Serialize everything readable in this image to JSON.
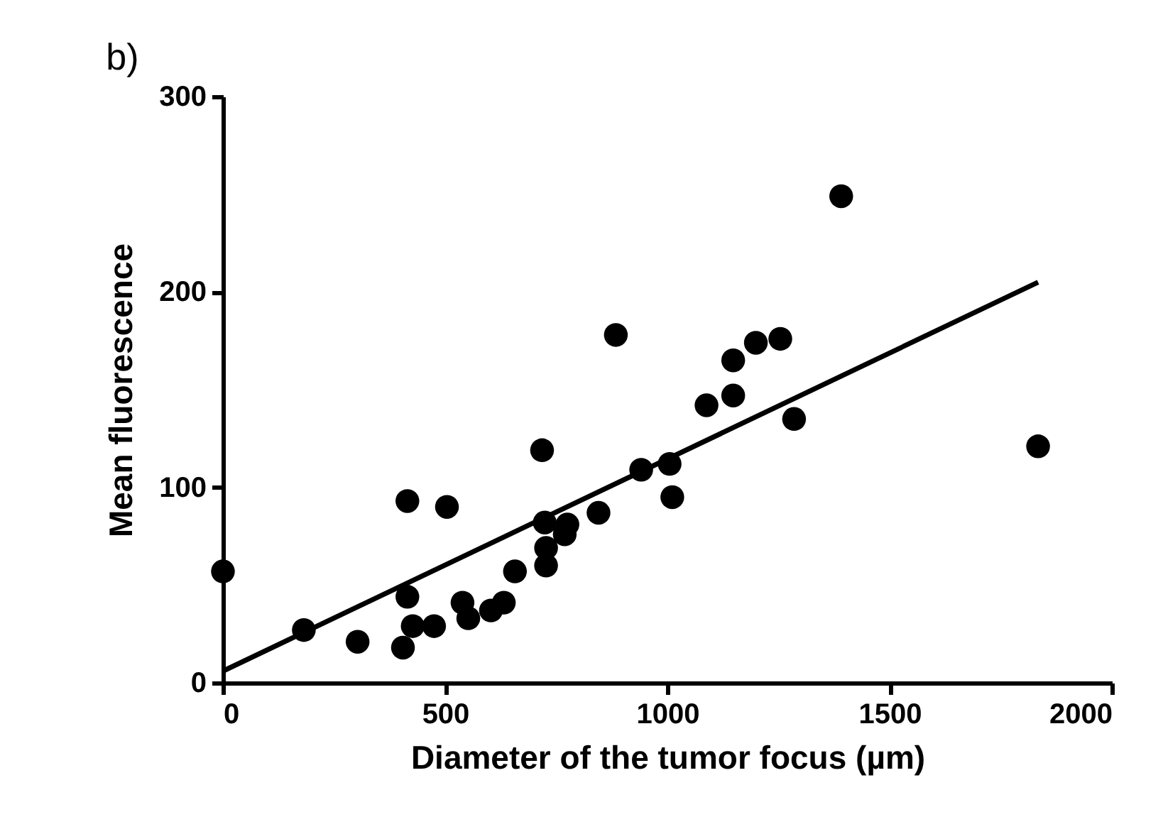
{
  "chart_data": {
    "type": "scatter",
    "xlabel": "Diameter of the tumor focus (µm)",
    "ylabel": "Mean fluorescence",
    "annotations": [
      "b)"
    ],
    "xlim": [
      0,
      2000
    ],
    "xticks": [
      0,
      500,
      1000,
      1500,
      2000
    ],
    "ylim": [
      0,
      300
    ],
    "yticks": [
      0,
      100,
      200,
      300
    ],
    "grid": false,
    "marker": "circle",
    "series": [
      {
        "color": "#000000",
        "x": [
          0,
          182,
          303,
          405,
          415,
          415,
          427,
          475,
          504,
          539,
          552,
          603,
          632,
          657,
          718,
          724,
          727,
          727,
          775,
          769,
          845,
          884,
          941,
          1005,
          1011,
          1088,
          1148,
          1148,
          1199,
          1254,
          1285,
          1391,
          1834
        ],
        "values": [
          57,
          27,
          21,
          18,
          44,
          93,
          29,
          29,
          90,
          41,
          33,
          37,
          41,
          57,
          119,
          82,
          69,
          60,
          81,
          76,
          87,
          178,
          109,
          112,
          95,
          142,
          147,
          165,
          174,
          176,
          135,
          249,
          121
        ]
      },
      {
        "type": "line",
        "color": "#000000",
        "line_style": "solid",
        "marker": "none",
        "x": [
          0,
          1834
        ],
        "values": [
          6,
          205
        ]
      }
    ]
  }
}
